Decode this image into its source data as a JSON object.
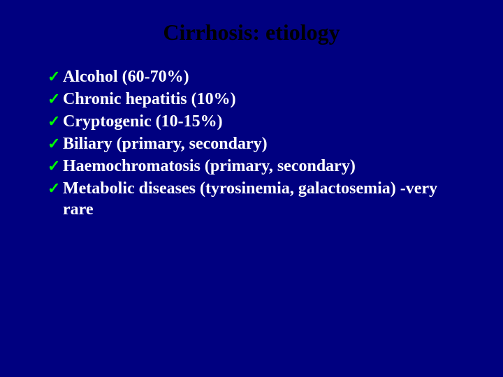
{
  "slide": {
    "title": "Cirrhosis: etiology",
    "background_color": "#000080",
    "title_color": "#000000",
    "title_fontsize": 32,
    "bullet_text_color": "#ffffff",
    "bullet_fontsize": 24,
    "check_color": "#00ff00",
    "check_glyph": "✓",
    "font_family": "Times New Roman",
    "bullets": [
      "Alcohol (60-70%)",
      "Chronic hepatitis (10%)",
      "Cryptogenic (10-15%)",
      "Biliary (primary, secondary)",
      "Haemochromatosis (primary, secondary)",
      "Metabolic diseases (tyrosinemia, galactosemia) -very rare"
    ]
  }
}
